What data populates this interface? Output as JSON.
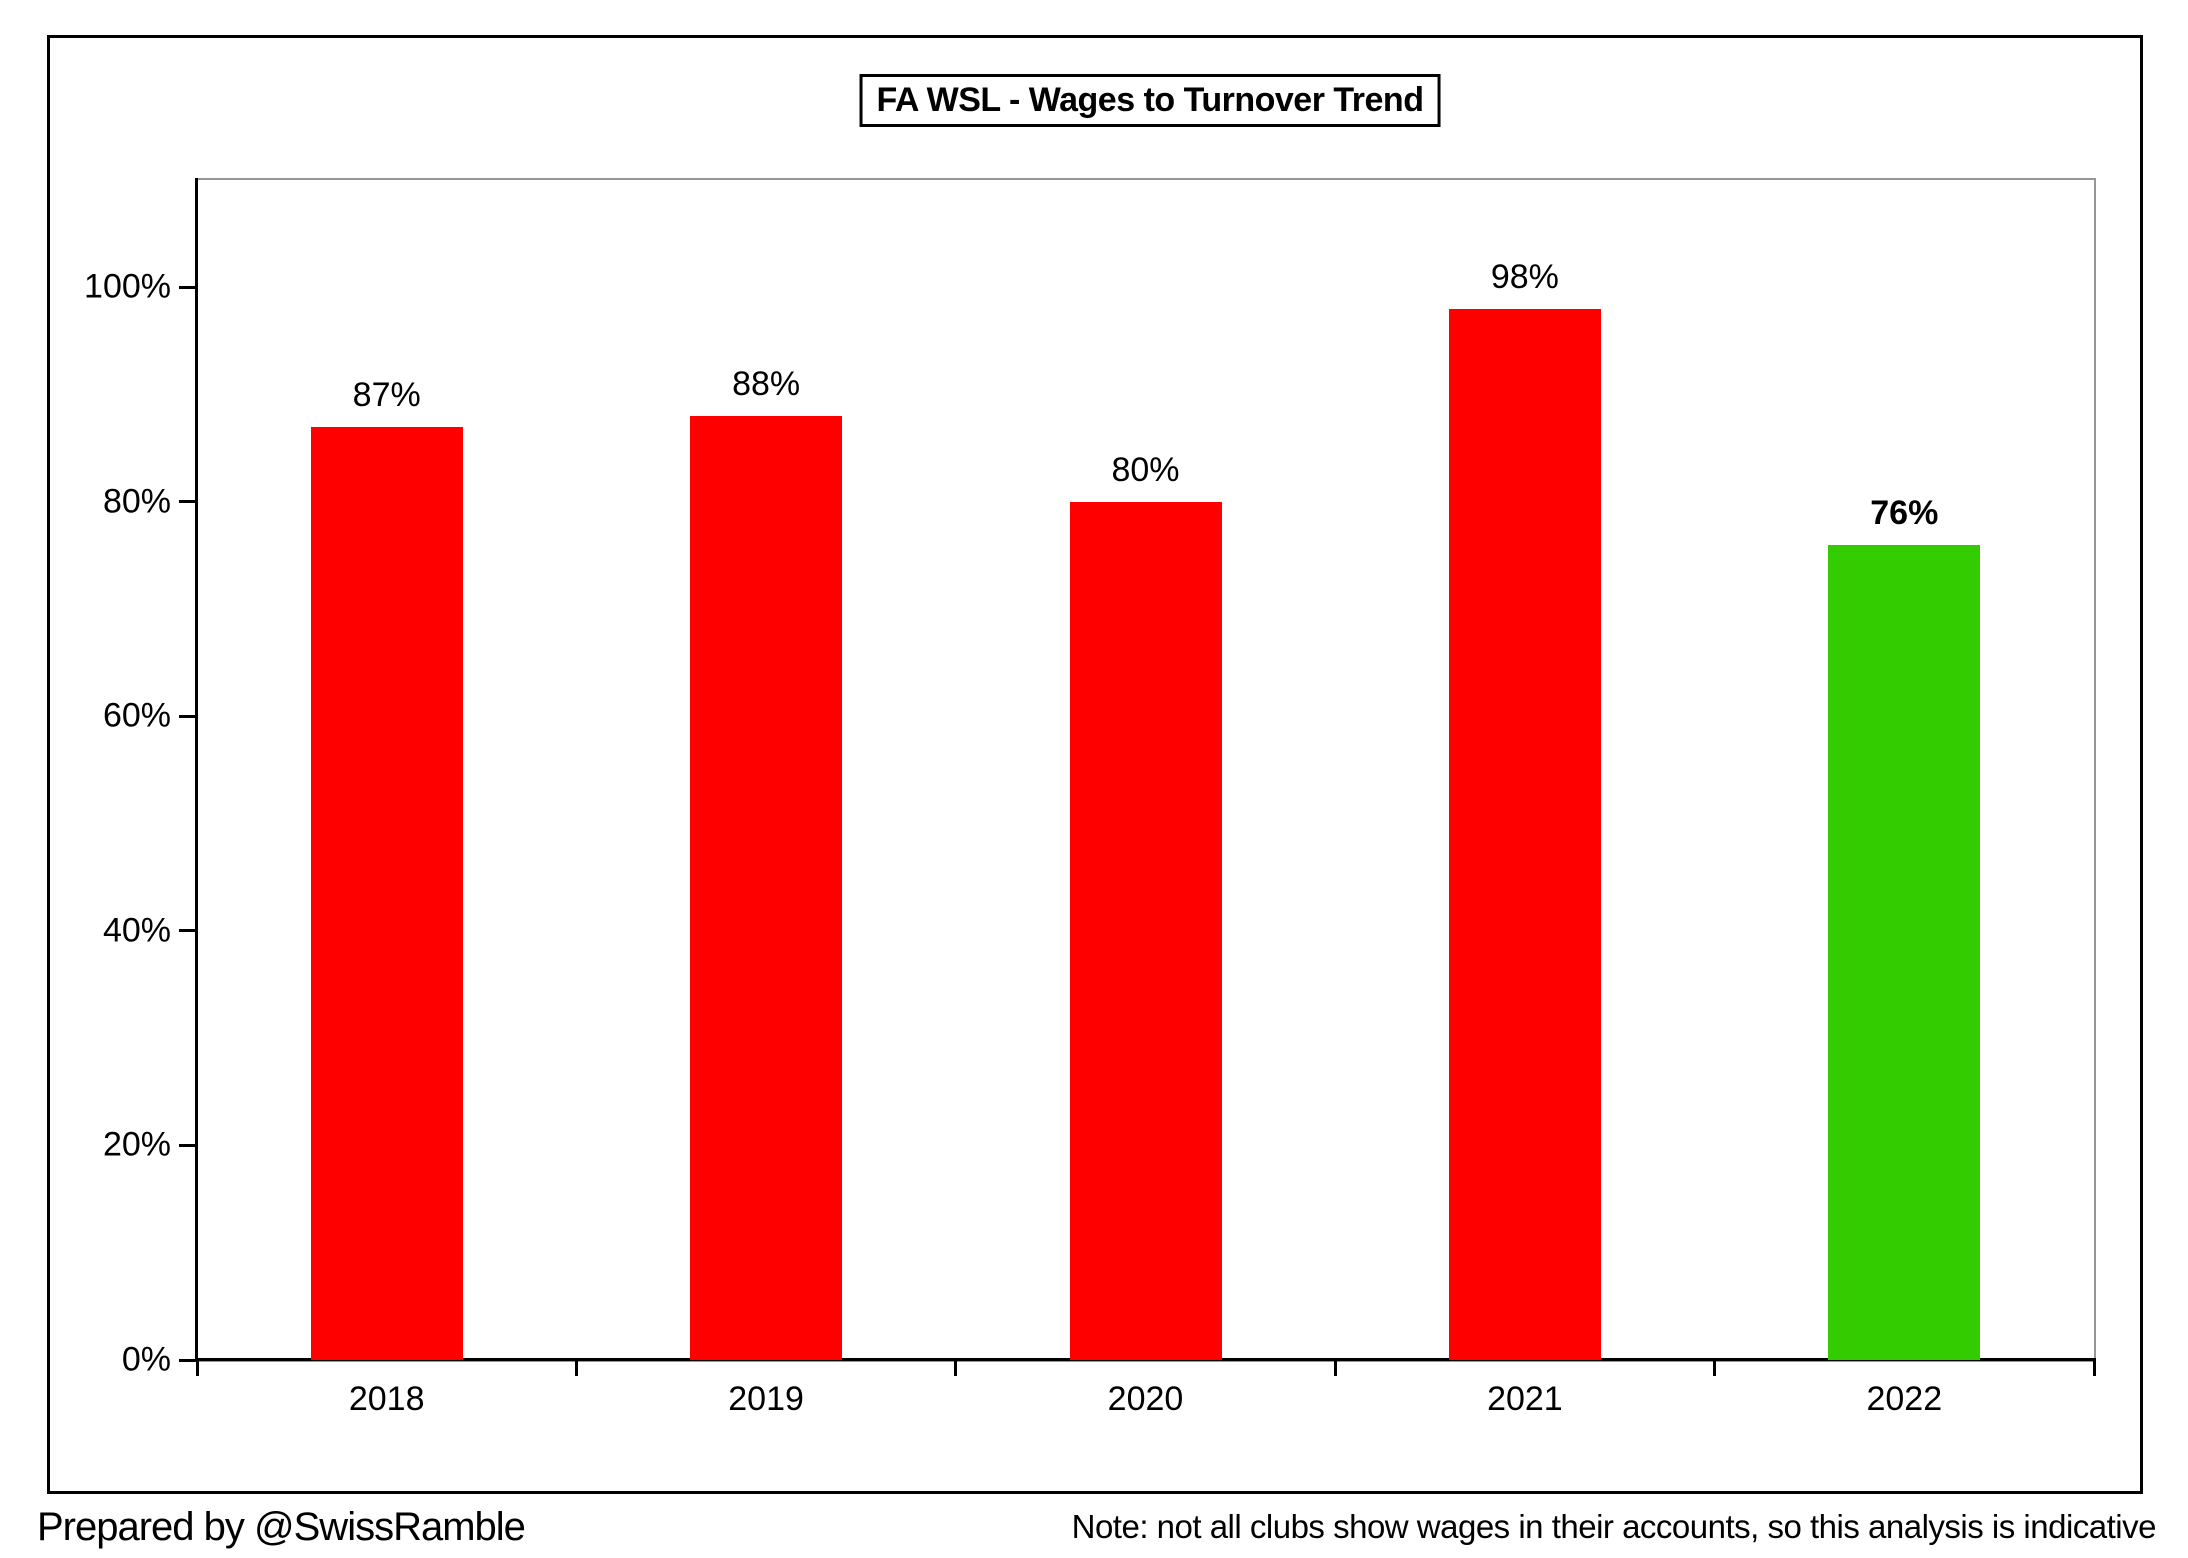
{
  "title": "FA WSL - Wages to Turnover Trend",
  "footer": {
    "left": "Prepared by @SwissRamble",
    "right": "Note: not all clubs show wages in their accounts, so this analysis is indicative"
  },
  "chart_data": {
    "type": "bar",
    "title": "FA WSL - Wages to Turnover Trend",
    "categories": [
      "2018",
      "2019",
      "2020",
      "2021",
      "2022"
    ],
    "values": [
      87,
      88,
      80,
      98,
      76
    ],
    "bar_labels": [
      "87%",
      "88%",
      "80%",
      "98%",
      "76%"
    ],
    "bar_label_bold": [
      false,
      false,
      false,
      false,
      true
    ],
    "bar_colors": [
      "#FF0000",
      "#FF0000",
      "#FF0000",
      "#FF0000",
      "#33CC00"
    ],
    "xlabel": "",
    "ylabel": "",
    "ylim": [
      0,
      110
    ],
    "yticks": [
      0,
      20,
      40,
      60,
      80,
      100
    ],
    "ytick_labels": [
      "0%",
      "20%",
      "40%",
      "60%",
      "80%",
      "100%"
    ],
    "grid": false,
    "legend": false,
    "colors": {
      "bar_red": "#FF0000",
      "bar_green": "#33CC00",
      "axis": "#000000",
      "plot_border": "#969696",
      "text": "#000000",
      "background": "#ffffff"
    }
  }
}
